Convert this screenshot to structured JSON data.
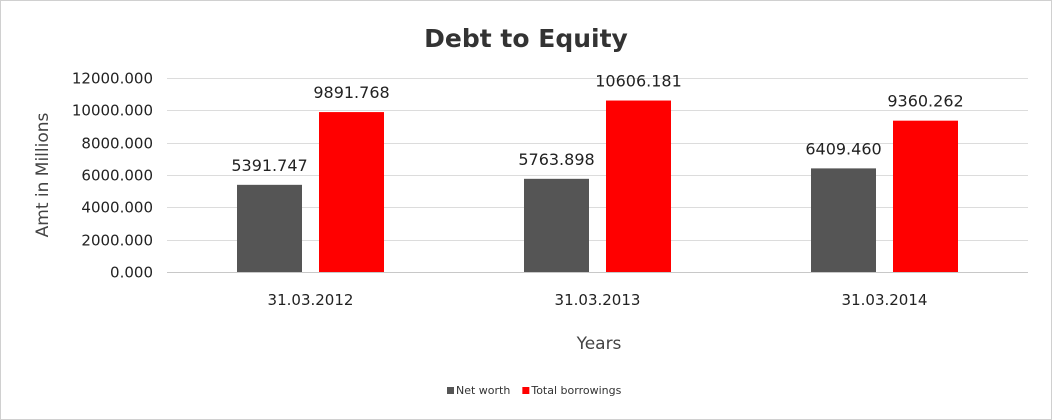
{
  "chart_data": {
    "type": "bar",
    "title": "Debt to Equity",
    "xlabel": "Years",
    "ylabel": "Amt in Millions",
    "categories": [
      "31.03.2012",
      "31.03.2013",
      "31.03.2014"
    ],
    "series": [
      {
        "name": "Net worth",
        "color": "#555555",
        "values": [
          5391.747,
          5763.898,
          6409.46
        ],
        "labels": [
          "5391.747",
          "5763.898",
          "6409.460"
        ]
      },
      {
        "name": "Total borrowings",
        "color": "#ff0000",
        "values": [
          9891.768,
          10606.181,
          9360.262
        ],
        "labels": [
          "9891.768",
          "10606.181",
          "9360.262"
        ]
      }
    ],
    "ylim": [
      0,
      12000
    ],
    "yticks": [
      0,
      2000,
      4000,
      6000,
      8000,
      10000,
      12000
    ],
    "ytick_labels": [
      "0.000",
      "2000.000",
      "4000.000",
      "6000.000",
      "8000.000",
      "10000.000",
      "12000.000"
    ],
    "grid": true,
    "legend_position": "bottom"
  }
}
